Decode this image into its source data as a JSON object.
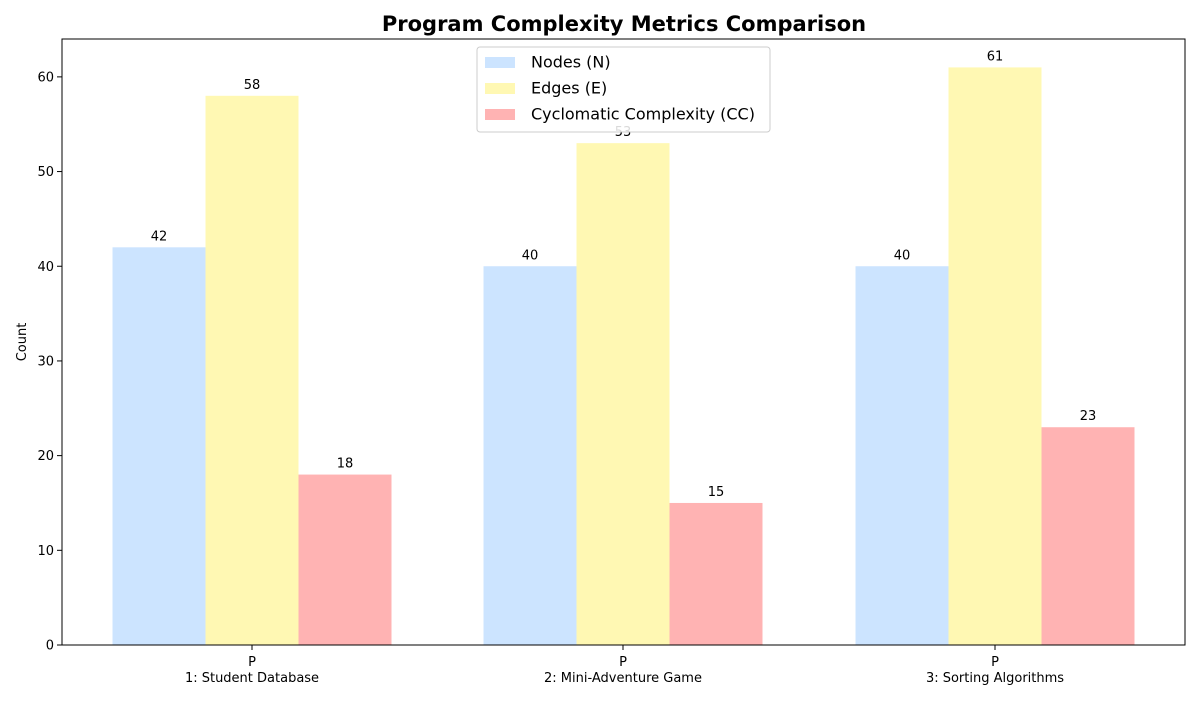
{
  "chart_data": {
    "type": "bar",
    "title": "Program Complexity Metrics Comparison",
    "xlabel": "",
    "ylabel": "Count",
    "ylim": [
      0,
      64
    ],
    "yticks": [
      0,
      10,
      20,
      30,
      40,
      50,
      60
    ],
    "grid": false,
    "legend_position": "top-center",
    "categories": [
      "P\n1: Student Database",
      "P\n2: Mini-Adventure Game",
      "P\n3: Sorting Algorithms"
    ],
    "series": [
      {
        "name": "Nodes (N)",
        "color": "#cce4ff",
        "values": [
          42,
          40,
          40
        ]
      },
      {
        "name": "Edges (E)",
        "color": "#fff8b3",
        "values": [
          58,
          53,
          61
        ]
      },
      {
        "name": "Cyclomatic Complexity (CC)",
        "color": "#ffb3b3",
        "values": [
          18,
          15,
          23
        ]
      }
    ]
  }
}
